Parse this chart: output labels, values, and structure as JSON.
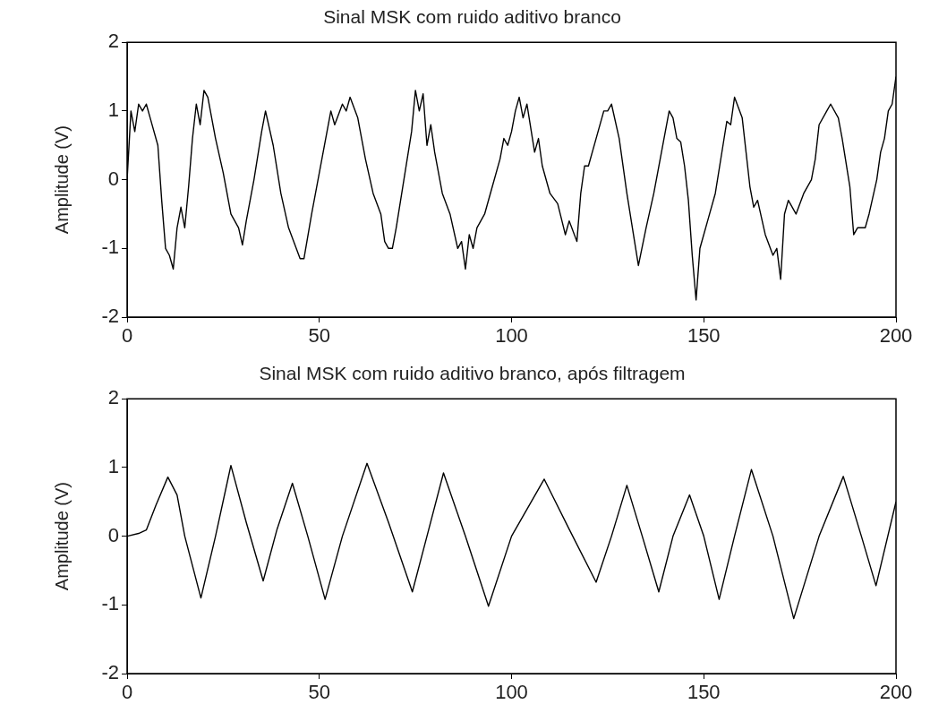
{
  "chart_data": [
    {
      "type": "line",
      "title": "Sinal MSK com ruido aditivo branco",
      "ylabel": "Amplitude (V)",
      "color": "#000000",
      "xlim": [
        0,
        200
      ],
      "xticks": [
        0,
        50,
        100,
        150,
        200
      ],
      "ylim": [
        -2,
        2
      ],
      "yticks": [
        -2,
        -1,
        0,
        1,
        2
      ],
      "x": [
        0,
        1,
        2,
        3,
        4,
        5,
        6,
        8,
        9,
        10,
        11,
        12,
        13,
        14,
        15,
        16,
        17,
        18,
        19,
        20,
        21,
        23,
        25,
        27,
        29,
        30,
        31,
        33,
        35,
        36,
        38,
        40,
        42,
        44,
        45,
        46,
        48,
        49,
        51,
        52,
        53,
        54,
        56,
        57,
        58,
        60,
        62,
        64,
        66,
        67,
        68,
        69,
        70,
        72,
        74,
        75,
        76,
        77,
        78,
        79,
        80,
        82,
        84,
        86,
        87,
        88,
        89,
        90,
        91,
        93,
        95,
        97,
        98,
        99,
        100,
        101,
        102,
        103,
        104,
        106,
        107,
        108,
        110,
        112,
        114,
        115,
        117,
        118,
        119,
        120,
        122,
        124,
        125,
        126,
        128,
        130,
        132,
        133,
        135,
        137,
        139,
        140,
        141,
        142,
        143,
        144,
        145,
        146,
        147,
        148,
        149,
        151,
        153,
        155,
        156,
        157,
        158,
        160,
        161,
        162,
        163,
        164,
        166,
        168,
        169,
        170,
        171,
        172,
        174,
        176,
        178,
        179,
        180,
        182,
        183,
        185,
        186,
        188,
        189,
        190,
        192,
        193,
        195,
        196,
        197,
        198,
        199,
        200
      ],
      "values": [
        0,
        1.0,
        0.7,
        1.1,
        1.0,
        1.1,
        0.9,
        0.5,
        -0.3,
        -1.0,
        -1.1,
        -1.3,
        -0.7,
        -0.4,
        -0.7,
        -0.1,
        0.6,
        1.1,
        0.8,
        1.3,
        1.2,
        0.6,
        0.1,
        -0.5,
        -0.7,
        -0.95,
        -0.6,
        0.0,
        0.7,
        1.0,
        0.5,
        -0.2,
        -0.7,
        -1.0,
        -1.15,
        -1.15,
        -0.5,
        -0.2,
        0.4,
        0.7,
        1.0,
        0.8,
        1.1,
        1.0,
        1.2,
        0.9,
        0.3,
        -0.2,
        -0.5,
        -0.9,
        -1.0,
        -1.0,
        -0.7,
        0.0,
        0.7,
        1.3,
        1.0,
        1.25,
        0.5,
        0.8,
        0.4,
        -0.2,
        -0.5,
        -1.0,
        -0.9,
        -1.3,
        -0.8,
        -1.0,
        -0.7,
        -0.5,
        -0.1,
        0.3,
        0.6,
        0.5,
        0.7,
        1.0,
        1.2,
        0.9,
        1.1,
        0.4,
        0.6,
        0.2,
        -0.2,
        -0.35,
        -0.8,
        -0.6,
        -0.9,
        -0.2,
        0.2,
        0.2,
        0.6,
        1.0,
        1.0,
        1.1,
        0.6,
        -0.2,
        -0.9,
        -1.25,
        -0.7,
        -0.2,
        0.4,
        0.7,
        1.0,
        0.9,
        0.6,
        0.55,
        0.2,
        -0.3,
        -1.1,
        -1.75,
        -1.0,
        -0.6,
        -0.2,
        0.5,
        0.85,
        0.8,
        1.2,
        0.9,
        0.4,
        -0.1,
        -0.4,
        -0.3,
        -0.8,
        -1.1,
        -1.0,
        -1.45,
        -0.5,
        -0.3,
        -0.5,
        -0.2,
        0.0,
        0.3,
        0.8,
        1.0,
        1.1,
        0.9,
        0.6,
        -0.1,
        -0.8,
        -0.7,
        -0.7,
        -0.5,
        0.0,
        0.4,
        0.6,
        1.0,
        1.1,
        1.5
      ]
    },
    {
      "type": "line",
      "title": "Sinal MSK com ruido aditivo branco, após filtragem",
      "ylabel": "Amplitude (V)",
      "color": "#000000",
      "xlim": [
        0,
        200
      ],
      "xticks": [
        0,
        50,
        100,
        150,
        200
      ],
      "ylim": [
        -2,
        2
      ],
      "yticks": [
        -2,
        -1,
        0,
        1,
        2
      ],
      "x": [
        0,
        3,
        5,
        7.5,
        10.6,
        13,
        15,
        19.2,
        23,
        27,
        31,
        35.4,
        39,
        43,
        47,
        51.5,
        56,
        62.4,
        68,
        74.2,
        78,
        82.3,
        88,
        94,
        100,
        108.5,
        115,
        122,
        126,
        130,
        134,
        138.3,
        142,
        146.3,
        150,
        154,
        158,
        162.4,
        168,
        173.4,
        180,
        186.3,
        191,
        194.8,
        200
      ],
      "values": [
        0,
        0.04,
        0.09,
        0.45,
        0.86,
        0.6,
        0,
        -0.9,
        0,
        1.03,
        0.2,
        -0.65,
        0.1,
        0.77,
        0,
        -0.92,
        0,
        1.06,
        0.2,
        -0.81,
        0,
        0.92,
        0,
        -1.02,
        0,
        0.83,
        0.1,
        -0.67,
        0,
        0.74,
        0,
        -0.81,
        0,
        0.6,
        0,
        -0.92,
        0,
        0.97,
        0,
        -1.2,
        0,
        0.87,
        0,
        -0.72,
        0.5
      ]
    }
  ]
}
